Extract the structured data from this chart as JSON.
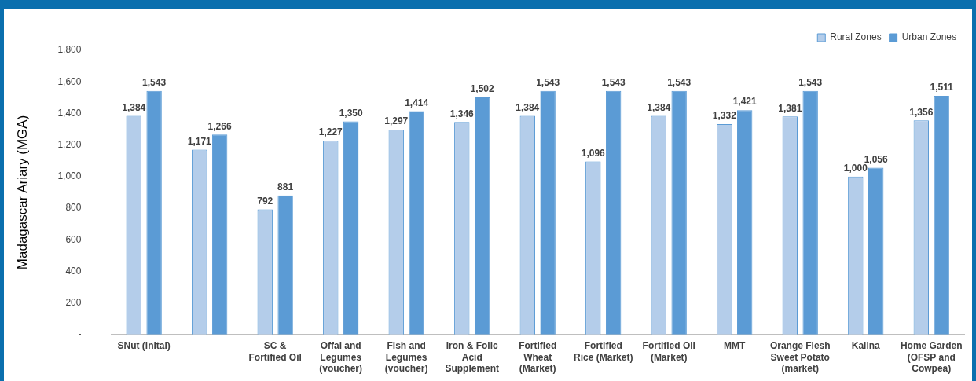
{
  "chart_data": {
    "type": "bar",
    "ylabel": "Madagascar Ariary (MGA)",
    "categories": [
      "SNut (inital)",
      null,
      "SC & Fortified Oil",
      "Offal and Legumes (voucher)",
      "Fish and Legumes (voucher)",
      "Iron & Folic Acid Supplement",
      "Fortified Wheat (Market)",
      "Fortified Rice (Market)",
      "Fortified Oil (Market)",
      "MMT",
      "Orange Flesh Sweet Potato (market)",
      "Kalina",
      "Home Garden (OFSP and Cowpea)"
    ],
    "series": [
      {
        "name": "Rural Zones",
        "color": "#b4cdea",
        "values": [
          1384,
          1171,
          792,
          1227,
          1297,
          1346,
          1384,
          1096,
          1384,
          1332,
          1381,
          1000,
          1356
        ],
        "value_labels": [
          "1,384",
          "1,171",
          "792",
          "1,227",
          "1,297",
          "1,346",
          "1,384",
          "1,096",
          "1,384",
          "1,332",
          "1,381",
          "1,000",
          "1,356"
        ]
      },
      {
        "name": "Urban Zones",
        "color": "#5b9bd5",
        "values": [
          1543,
          1266,
          881,
          1350,
          1414,
          1502,
          1543,
          1543,
          1543,
          1421,
          1543,
          1056,
          1511
        ],
        "value_labels": [
          "1,543",
          "1,266",
          "881",
          "1,350",
          "1,414",
          "1,502",
          "1,543",
          "1,543",
          "1,543",
          "1,421",
          "1,543",
          "1,056",
          "1,511"
        ]
      }
    ],
    "ylim": [
      0,
      1800
    ],
    "yticks": [
      {
        "value": 0,
        "label": "-"
      },
      {
        "value": 200,
        "label": "200"
      },
      {
        "value": 400,
        "label": "400"
      },
      {
        "value": 600,
        "label": "600"
      },
      {
        "value": 800,
        "label": "800"
      },
      {
        "value": 1000,
        "label": "1,000"
      },
      {
        "value": 1200,
        "label": "1,200"
      },
      {
        "value": 1400,
        "label": "1,400"
      },
      {
        "value": 1600,
        "label": "1,600"
      },
      {
        "value": 1800,
        "label": "1,800"
      }
    ],
    "legend": "top right",
    "grid": false
  }
}
